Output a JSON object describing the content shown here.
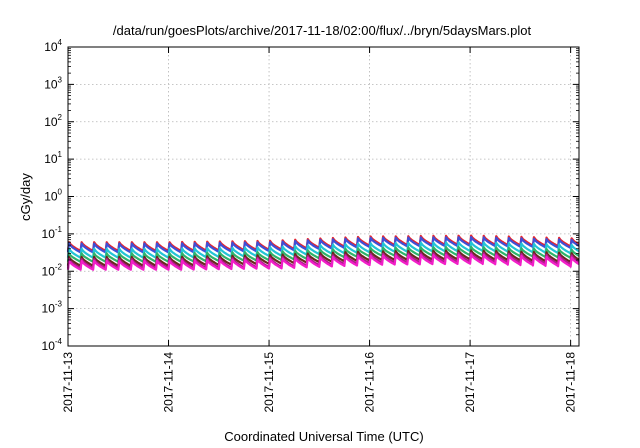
{
  "chart_data": {
    "type": "line",
    "title": "/data/run/goesPlots/archive/2017-11-18/02:00/flux/../bryn/5daysMars.plot",
    "xlabel": "Coordinated Universal Time (UTC)",
    "ylabel": "cGy/day",
    "y_scale": "log",
    "ylim": [
      0.0001,
      10000
    ],
    "y_ticks": [
      {
        "base": "10",
        "exp": "-4",
        "value": 0.0001
      },
      {
        "base": "10",
        "exp": "-3",
        "value": 0.001
      },
      {
        "base": "10",
        "exp": "-2",
        "value": 0.01
      },
      {
        "base": "10",
        "exp": "-1",
        "value": 0.1
      },
      {
        "base": "10",
        "exp": "0",
        "value": 1
      },
      {
        "base": "10",
        "exp": "1",
        "value": 10
      },
      {
        "base": "10",
        "exp": "2",
        "value": 100
      },
      {
        "base": "10",
        "exp": "3",
        "value": 1000
      },
      {
        "base": "10",
        "exp": "4",
        "value": 10000
      }
    ],
    "xlim": [
      "2017-11-13",
      "2017-11-18T02:00"
    ],
    "x_ticks": [
      "2017-11-13",
      "2017-11-14",
      "2017-11-15",
      "2017-11-16",
      "2017-11-17",
      "2017-11-18"
    ],
    "grid": true,
    "series": [
      {
        "color": "#e8242d",
        "envelope": {
          "x": [
            "2017-11-13",
            "2017-11-14",
            "2017-11-15",
            "2017-11-16",
            "2017-11-17",
            "2017-11-18T02:00"
          ],
          "peak": [
            0.06,
            0.06,
            0.065,
            0.085,
            0.09,
            0.075
          ],
          "trough": [
            0.035,
            0.035,
            0.038,
            0.05,
            0.052,
            0.045
          ]
        }
      },
      {
        "color": "#3f4fd6",
        "envelope": {
          "x": [
            "2017-11-13",
            "2017-11-14",
            "2017-11-15",
            "2017-11-16",
            "2017-11-17",
            "2017-11-18T02:00"
          ],
          "peak": [
            0.055,
            0.055,
            0.06,
            0.078,
            0.082,
            0.068
          ],
          "trough": [
            0.032,
            0.032,
            0.035,
            0.046,
            0.048,
            0.041
          ]
        }
      },
      {
        "color": "#22c4d6",
        "envelope": {
          "x": [
            "2017-11-13",
            "2017-11-14",
            "2017-11-15",
            "2017-11-16",
            "2017-11-17",
            "2017-11-18T02:00"
          ],
          "peak": [
            0.04,
            0.04,
            0.044,
            0.056,
            0.06,
            0.05
          ],
          "trough": [
            0.023,
            0.023,
            0.026,
            0.033,
            0.035,
            0.029
          ]
        }
      },
      {
        "color": "#2fb36a",
        "envelope": {
          "x": [
            "2017-11-13",
            "2017-11-14",
            "2017-11-15",
            "2017-11-16",
            "2017-11-17",
            "2017-11-18T02:00"
          ],
          "peak": [
            0.03,
            0.03,
            0.033,
            0.042,
            0.045,
            0.037
          ],
          "trough": [
            0.018,
            0.018,
            0.02,
            0.026,
            0.027,
            0.022
          ]
        }
      },
      {
        "color": "#6a2a1e",
        "envelope": {
          "x": [
            "2017-11-13",
            "2017-11-14",
            "2017-11-15",
            "2017-11-16",
            "2017-11-17",
            "2017-11-18T02:00"
          ],
          "peak": [
            0.024,
            0.024,
            0.027,
            0.034,
            0.036,
            0.03
          ],
          "trough": [
            0.014,
            0.014,
            0.016,
            0.02,
            0.021,
            0.017
          ]
        }
      },
      {
        "color": "#b01a8c",
        "envelope": {
          "x": [
            "2017-11-13",
            "2017-11-14",
            "2017-11-15",
            "2017-11-16",
            "2017-11-17",
            "2017-11-18T02:00"
          ],
          "peak": [
            0.021,
            0.021,
            0.023,
            0.029,
            0.031,
            0.026
          ],
          "trough": [
            0.012,
            0.012,
            0.013,
            0.017,
            0.018,
            0.015
          ]
        }
      },
      {
        "color": "#f21fc8",
        "envelope": {
          "x": [
            "2017-11-13",
            "2017-11-14",
            "2017-11-15",
            "2017-11-16",
            "2017-11-17",
            "2017-11-18T02:00"
          ],
          "peak": [
            0.019,
            0.019,
            0.021,
            0.026,
            0.028,
            0.023
          ],
          "trough": [
            0.011,
            0.011,
            0.012,
            0.015,
            0.016,
            0.013
          ]
        }
      }
    ],
    "sawtooth_cycles_per_day": 8
  }
}
